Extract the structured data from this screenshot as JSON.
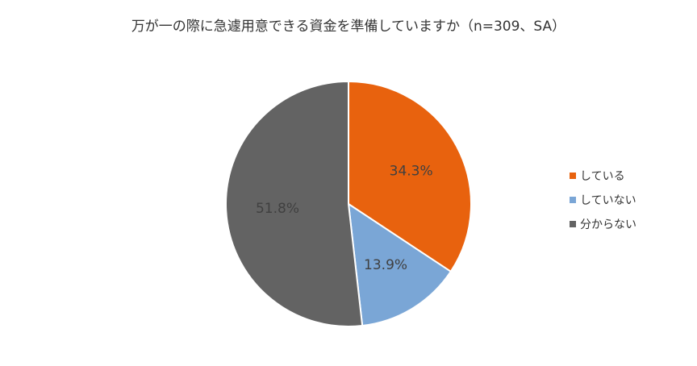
{
  "chart_data": {
    "type": "pie",
    "title": "万が一の際に急遽用意できる資金を準備していますか（n=309、SA）",
    "categories": [
      "している",
      "していない",
      "分からない"
    ],
    "values": [
      34.3,
      13.9,
      51.8
    ],
    "labels": [
      "34.3%",
      "13.9%",
      "51.8%"
    ],
    "colors": [
      "#E8620E",
      "#7AA6D6",
      "#636363"
    ],
    "legend_position": "right"
  }
}
